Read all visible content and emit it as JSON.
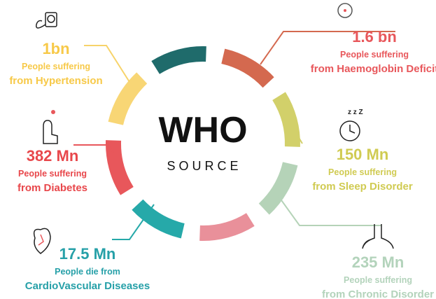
{
  "center": {
    "title": "WHO",
    "subtitle": "SOURCE"
  },
  "items": [
    {
      "value": "1bn",
      "line1": "People suffering",
      "line2": "from Hypertension"
    },
    {
      "value": "1.6 bn",
      "line1": "People suffering",
      "line2": "from Haemoglobin Deficit"
    },
    {
      "value": "382 Mn",
      "line1": "People suffering",
      "line2": "from Diabetes"
    },
    {
      "value": "150 Mn",
      "line1": "People suffering",
      "line2": "from Sleep Disorder"
    },
    {
      "value": "17.5 Mn",
      "line1": "People die from",
      "line2": "CardioVascular Diseases"
    },
    {
      "value": "235 Mn",
      "line1": "People suffering",
      "line2": "from Chronic Disorder"
    }
  ]
}
